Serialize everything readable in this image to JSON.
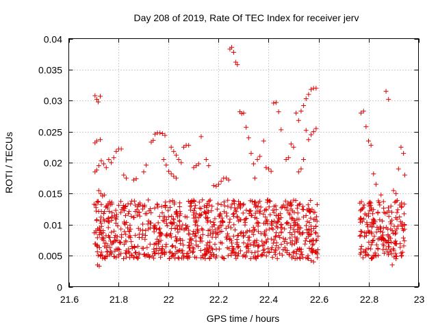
{
  "chart_data": {
    "type": "scatter",
    "title": "Day 208 of 2019, Rate Of TEC Index for receiver jerv",
    "xlabel": "GPS time / hours",
    "ylabel": "ROTI / TECUs",
    "xlim": [
      21.6,
      23.0
    ],
    "ylim": [
      0,
      0.04
    ],
    "xticks": [
      "21.6",
      "21.8",
      "22",
      "22.2",
      "22.4",
      "22.6",
      "22.8",
      "23"
    ],
    "xtick_values": [
      21.6,
      21.8,
      22.0,
      22.2,
      22.4,
      22.6,
      22.8,
      23.0
    ],
    "yticks": [
      "0",
      "0.005",
      "0.01",
      "0.015",
      "0.02",
      "0.025",
      "0.03",
      "0.035",
      "0.04"
    ],
    "ytick_values": [
      0,
      0.005,
      0.01,
      0.015,
      0.02,
      0.025,
      0.03,
      0.035,
      0.04
    ],
    "grid": true,
    "marker": "+",
    "series_color": "#e00000",
    "series": [
      {
        "name": "ROTI",
        "points": [
          [
            21.705,
            0.0308
          ],
          [
            21.712,
            0.0302
          ],
          [
            21.718,
            0.0298
          ],
          [
            21.726,
            0.0307
          ],
          [
            21.705,
            0.0232
          ],
          [
            21.712,
            0.0235
          ],
          [
            21.726,
            0.0237
          ],
          [
            21.705,
            0.0185
          ],
          [
            21.712,
            0.0188
          ],
          [
            21.72,
            0.0195
          ],
          [
            21.73,
            0.0203
          ],
          [
            21.74,
            0.0198
          ],
          [
            21.75,
            0.0192
          ],
          [
            21.76,
            0.0205
          ],
          [
            21.77,
            0.02
          ],
          [
            21.78,
            0.0208
          ],
          [
            21.79,
            0.0218
          ],
          [
            21.8,
            0.0222
          ],
          [
            21.81,
            0.0222
          ],
          [
            21.72,
            0.0155
          ],
          [
            21.728,
            0.015
          ],
          [
            21.735,
            0.0146
          ],
          [
            21.742,
            0.0148
          ],
          [
            21.82,
            0.018
          ],
          [
            21.83,
            0.0175
          ],
          [
            21.86,
            0.0172
          ],
          [
            21.87,
            0.0174
          ],
          [
            21.9,
            0.0185
          ],
          [
            21.91,
            0.0196
          ],
          [
            21.93,
            0.0233
          ],
          [
            21.938,
            0.0236
          ],
          [
            21.945,
            0.0246
          ],
          [
            21.955,
            0.0248
          ],
          [
            21.965,
            0.0248
          ],
          [
            21.975,
            0.0247
          ],
          [
            21.985,
            0.0244
          ],
          [
            21.98,
            0.0205
          ],
          [
            21.99,
            0.0196
          ],
          [
            22.0,
            0.0186
          ],
          [
            22.01,
            0.0182
          ],
          [
            22.02,
            0.0178
          ],
          [
            22.03,
            0.0175
          ],
          [
            22.01,
            0.0225
          ],
          [
            22.02,
            0.0218
          ],
          [
            22.03,
            0.0212
          ],
          [
            22.04,
            0.0205
          ],
          [
            22.05,
            0.02
          ],
          [
            22.06,
            0.0225
          ],
          [
            22.07,
            0.0228
          ],
          [
            22.08,
            0.0228
          ],
          [
            22.1,
            0.0192
          ],
          [
            22.11,
            0.0195
          ],
          [
            22.12,
            0.0198
          ],
          [
            22.13,
            0.0242
          ],
          [
            22.15,
            0.0205
          ],
          [
            22.16,
            0.0195
          ],
          [
            22.18,
            0.0163
          ],
          [
            22.19,
            0.0162
          ],
          [
            22.2,
            0.0165
          ],
          [
            22.21,
            0.017
          ],
          [
            22.22,
            0.0175
          ],
          [
            22.23,
            0.0175
          ],
          [
            22.24,
            0.0172
          ],
          [
            22.245,
            0.0383
          ],
          [
            22.252,
            0.0386
          ],
          [
            22.26,
            0.0378
          ],
          [
            22.268,
            0.0362
          ],
          [
            22.275,
            0.0358
          ],
          [
            22.285,
            0.0282
          ],
          [
            22.292,
            0.0279
          ],
          [
            22.3,
            0.028
          ],
          [
            22.31,
            0.0257
          ],
          [
            22.32,
            0.024
          ],
          [
            22.33,
            0.0215
          ],
          [
            22.34,
            0.0198
          ],
          [
            22.345,
            0.0175
          ],
          [
            22.355,
            0.0205
          ],
          [
            22.365,
            0.021
          ],
          [
            22.38,
            0.0235
          ],
          [
            22.39,
            0.0192
          ],
          [
            22.4,
            0.019
          ],
          [
            22.41,
            0.0186
          ],
          [
            22.42,
            0.0296
          ],
          [
            22.43,
            0.0297
          ],
          [
            22.44,
            0.0282
          ],
          [
            22.45,
            0.0253
          ],
          [
            22.47,
            0.0205
          ],
          [
            22.48,
            0.0208
          ],
          [
            22.49,
            0.023
          ],
          [
            22.5,
            0.0225
          ],
          [
            22.51,
            0.028
          ],
          [
            22.52,
            0.0268
          ],
          [
            22.53,
            0.0283
          ],
          [
            22.54,
            0.0292
          ],
          [
            22.55,
            0.0303
          ],
          [
            22.56,
            0.031
          ],
          [
            22.57,
            0.0318
          ],
          [
            22.58,
            0.032
          ],
          [
            22.59,
            0.032
          ],
          [
            22.55,
            0.0252
          ],
          [
            22.56,
            0.0237
          ],
          [
            22.57,
            0.0245
          ],
          [
            22.58,
            0.025
          ],
          [
            22.59,
            0.0255
          ],
          [
            22.54,
            0.0205
          ],
          [
            22.53,
            0.019
          ],
          [
            22.52,
            0.0185
          ],
          [
            22.77,
            0.028
          ],
          [
            22.78,
            0.0283
          ],
          [
            22.79,
            0.0258
          ],
          [
            22.8,
            0.0235
          ],
          [
            22.81,
            0.0228
          ],
          [
            22.82,
            0.0182
          ],
          [
            22.83,
            0.0165
          ],
          [
            22.85,
            0.0148
          ],
          [
            22.87,
            0.0315
          ],
          [
            22.88,
            0.0302
          ],
          [
            22.9,
            0.0155
          ],
          [
            22.91,
            0.015
          ],
          [
            22.92,
            0.019
          ],
          [
            22.93,
            0.0225
          ],
          [
            22.94,
            0.0215
          ],
          [
            22.945,
            0.018
          ],
          [
            21.715,
            0.0035
          ],
          [
            21.722,
            0.0033
          ],
          [
            22.34,
            0.0048
          ],
          [
            22.35,
            0.0045
          ],
          [
            22.57,
            0.0042
          ],
          [
            22.58,
            0.004
          ],
          [
            22.895,
            0.0035
          ],
          [
            22.91,
            0.0045
          ],
          [
            22.77,
            0.0055
          ],
          [
            22.78,
            0.0057
          ],
          [
            22.79,
            0.006
          ],
          [
            22.82,
            0.0048
          ],
          [
            22.83,
            0.005
          ]
        ]
      }
    ]
  }
}
